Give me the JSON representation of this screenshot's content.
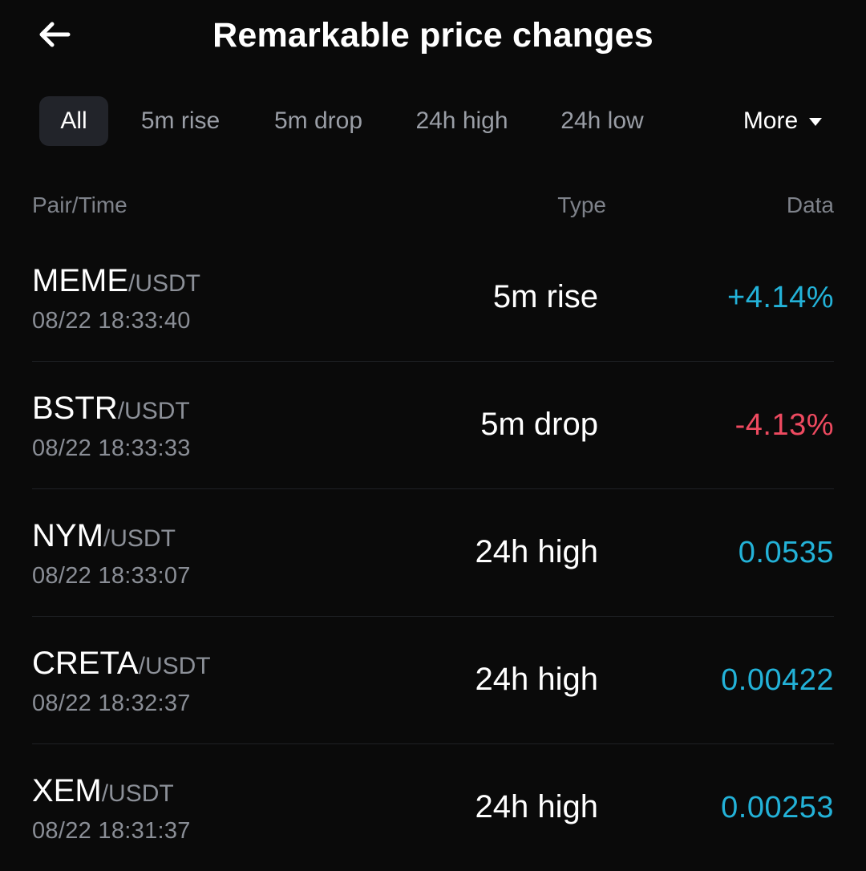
{
  "header": {
    "back_icon": "arrow-left-icon",
    "title": "Remarkable price changes"
  },
  "filters": {
    "tabs": [
      {
        "label": "All",
        "active": true
      },
      {
        "label": "5m rise",
        "active": false
      },
      {
        "label": "5m drop",
        "active": false
      },
      {
        "label": "24h high",
        "active": false
      },
      {
        "label": "24h low",
        "active": false
      }
    ],
    "more_label": "More",
    "more_icon": "caret-down-icon"
  },
  "table": {
    "columns": {
      "pair": "Pair/Time",
      "type": "Type",
      "data": "Data"
    },
    "rows": [
      {
        "base": "MEME",
        "quote": "/USDT",
        "time": "08/22 18:33:40",
        "type": "5m rise",
        "value": "+4.14%",
        "tone": "up"
      },
      {
        "base": "BSTR",
        "quote": "/USDT",
        "time": "08/22 18:33:33",
        "type": "5m drop",
        "value": "-4.13%",
        "tone": "down"
      },
      {
        "base": "NYM",
        "quote": "/USDT",
        "time": "08/22 18:33:07",
        "type": "24h high",
        "value": "0.0535",
        "tone": "up"
      },
      {
        "base": "CRETA",
        "quote": "/USDT",
        "time": "08/22 18:32:37",
        "type": "24h high",
        "value": "0.00422",
        "tone": "up"
      },
      {
        "base": "XEM",
        "quote": "/USDT",
        "time": "08/22 18:31:37",
        "type": "24h high",
        "value": "0.00253",
        "tone": "up"
      }
    ]
  },
  "colors": {
    "up": "#23b2d8",
    "down": "#ee4a60",
    "background": "#0a0a0a"
  }
}
